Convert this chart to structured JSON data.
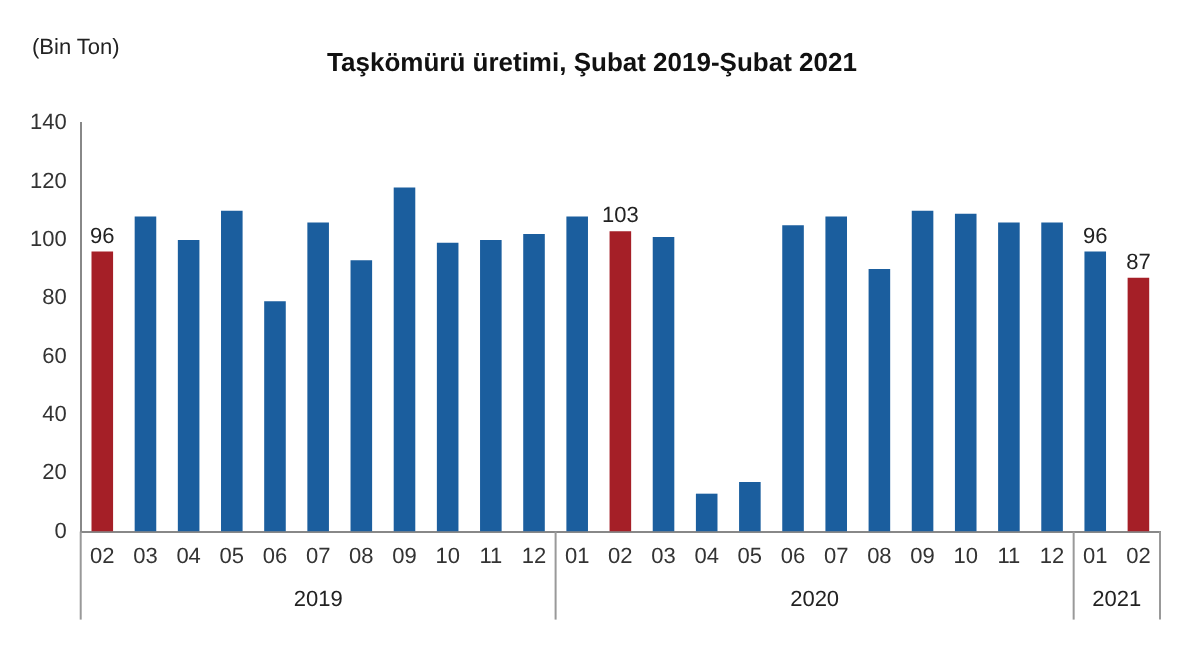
{
  "chart_data": {
    "type": "bar",
    "title": "Taşkömürü üretimi, Şubat 2019-Şubat 2021",
    "ylabel": "(Bin Ton)",
    "categories": [
      "02",
      "03",
      "04",
      "05",
      "06",
      "07",
      "08",
      "09",
      "10",
      "11",
      "12",
      "01",
      "02",
      "03",
      "04",
      "05",
      "06",
      "07",
      "08",
      "09",
      "10",
      "11",
      "12",
      "01",
      "02"
    ],
    "values": [
      96,
      108,
      100,
      110,
      79,
      106,
      93,
      118,
      99,
      100,
      102,
      108,
      103,
      101,
      13,
      17,
      105,
      108,
      90,
      110,
      109,
      106,
      106,
      96,
      87
    ],
    "colors": [
      "#a51f27",
      "#1b5e9e",
      "#1b5e9e",
      "#1b5e9e",
      "#1b5e9e",
      "#1b5e9e",
      "#1b5e9e",
      "#1b5e9e",
      "#1b5e9e",
      "#1b5e9e",
      "#1b5e9e",
      "#1b5e9e",
      "#a51f27",
      "#1b5e9e",
      "#1b5e9e",
      "#1b5e9e",
      "#1b5e9e",
      "#1b5e9e",
      "#1b5e9e",
      "#1b5e9e",
      "#1b5e9e",
      "#1b5e9e",
      "#1b5e9e",
      "#1b5e9e",
      "#a51f27"
    ],
    "value_labels": [
      "96",
      null,
      null,
      null,
      null,
      null,
      null,
      null,
      null,
      null,
      null,
      null,
      "103",
      null,
      null,
      null,
      null,
      null,
      null,
      null,
      null,
      null,
      null,
      "96",
      "87"
    ],
    "annotations": [
      "2019",
      "2020",
      "2021"
    ],
    "ylim": [
      0,
      140
    ],
    "yticks": [
      0,
      20,
      40,
      60,
      80,
      100,
      120,
      140
    ],
    "grid": false,
    "legend": false
  }
}
